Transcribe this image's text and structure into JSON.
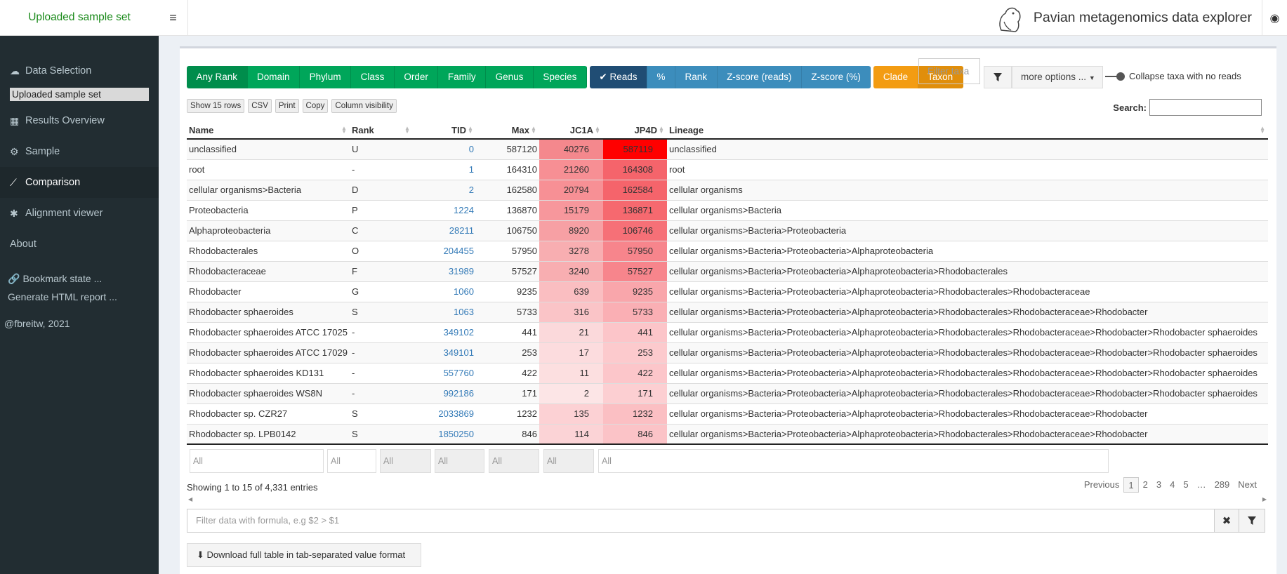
{
  "sidebar": {
    "logo": "Uploaded sample set",
    "items": [
      {
        "label": "Data Selection",
        "icon": "cloud-upload-icon"
      },
      {
        "label": "Results Overview",
        "icon": "table-icon"
      },
      {
        "label": "Sample",
        "icon": "gear-icon"
      },
      {
        "label": "Comparison",
        "icon": "line-chart-icon"
      },
      {
        "label": "Alignment viewer",
        "icon": "asterisk-icon"
      },
      {
        "label": "About",
        "icon": ""
      }
    ],
    "uploaded_label": "Uploaded sample set",
    "bookmark": "Bookmark state ...",
    "report": "Generate HTML report ...",
    "credit": "@fbreitw, 2021"
  },
  "header": {
    "title": "Pavian metagenomics data explorer"
  },
  "toolbar": {
    "rank_buttons": [
      "Any Rank",
      "Domain",
      "Phylum",
      "Class",
      "Order",
      "Family",
      "Genus",
      "Species"
    ],
    "value_buttons": [
      "Reads",
      "%",
      "Rank",
      "Z-score (reads)",
      "Z-score (%)"
    ],
    "clade_buttons": [
      "Clade",
      "Taxon"
    ],
    "filter_placeholder": "Filter taxa",
    "more_options": "more options ...",
    "collapse_label": "Collapse taxa with no reads",
    "small_buttons": [
      "Show 15 rows",
      "CSV",
      "Print",
      "Copy",
      "Column visibility"
    ],
    "search_label": "Search:"
  },
  "table": {
    "columns": [
      "Name",
      "Rank",
      "TID",
      "Max",
      "JC1A",
      "JP4D",
      "Lineage"
    ],
    "rows": [
      [
        "unclassified",
        "U",
        "0",
        "587120",
        "40276",
        "587119",
        "unclassified"
      ],
      [
        "root",
        "-",
        "1",
        "164310",
        "21260",
        "164308",
        "root"
      ],
      [
        "cellular organisms>Bacteria",
        "D",
        "2",
        "162580",
        "20794",
        "162584",
        "cellular organisms"
      ],
      [
        "Proteobacteria",
        "P",
        "1224",
        "136870",
        "15179",
        "136871",
        "cellular organisms>Bacteria"
      ],
      [
        "Alphaproteobacteria",
        "C",
        "28211",
        "106750",
        "8920",
        "106746",
        "cellular organisms>Bacteria>Proteobacteria"
      ],
      [
        "Rhodobacterales",
        "O",
        "204455",
        "57950",
        "3278",
        "57950",
        "cellular organisms>Bacteria>Proteobacteria>Alphaproteobacteria"
      ],
      [
        "Rhodobacteraceae",
        "F",
        "31989",
        "57527",
        "3240",
        "57527",
        "cellular organisms>Bacteria>Proteobacteria>Alphaproteobacteria>Rhodobacterales"
      ],
      [
        "Rhodobacter",
        "G",
        "1060",
        "9235",
        "639",
        "9235",
        "cellular organisms>Bacteria>Proteobacteria>Alphaproteobacteria>Rhodobacterales>Rhodobacteraceae"
      ],
      [
        "Rhodobacter sphaeroides",
        "S",
        "1063",
        "5733",
        "316",
        "5733",
        "cellular organisms>Bacteria>Proteobacteria>Alphaproteobacteria>Rhodobacterales>Rhodobacteraceae>Rhodobacter"
      ],
      [
        "Rhodobacter sphaeroides ATCC 17025",
        "-",
        "349102",
        "441",
        "21",
        "441",
        "cellular organisms>Bacteria>Proteobacteria>Alphaproteobacteria>Rhodobacterales>Rhodobacteraceae>Rhodobacter>Rhodobacter sphaeroides"
      ],
      [
        "Rhodobacter sphaeroides ATCC 17029",
        "-",
        "349101",
        "253",
        "17",
        "253",
        "cellular organisms>Bacteria>Proteobacteria>Alphaproteobacteria>Rhodobacterales>Rhodobacteraceae>Rhodobacter>Rhodobacter sphaeroides"
      ],
      [
        "Rhodobacter sphaeroides KD131",
        "-",
        "557760",
        "422",
        "11",
        "422",
        "cellular organisms>Bacteria>Proteobacteria>Alphaproteobacteria>Rhodobacterales>Rhodobacteraceae>Rhodobacter>Rhodobacter sphaeroides"
      ],
      [
        "Rhodobacter sphaeroides WS8N",
        "-",
        "992186",
        "171",
        "2",
        "171",
        "cellular organisms>Bacteria>Proteobacteria>Alphaproteobacteria>Rhodobacterales>Rhodobacteraceae>Rhodobacter>Rhodobacter sphaeroides"
      ],
      [
        "Rhodobacter sp. CZR27",
        "S",
        "2033869",
        "1232",
        "135",
        "1232",
        "cellular organisms>Bacteria>Proteobacteria>Alphaproteobacteria>Rhodobacterales>Rhodobacteraceae>Rhodobacter"
      ],
      [
        "Rhodobacter sp. LPB0142",
        "S",
        "1850250",
        "846",
        "114",
        "846",
        "cellular organisms>Bacteria>Proteobacteria>Alphaproteobacteria>Rhodobacterales>Rhodobacteraceae>Rhodobacter"
      ]
    ],
    "jc1a_colors": [
      "#f4888d",
      "#f78f94",
      "#f79095",
      "#f7979c",
      "#f7a0a4",
      "#f8aeb1",
      "#f8aeb1",
      "#fabec1",
      "#fac4c7",
      "#fbd9db",
      "#fcdcde",
      "#fcdfe0",
      "#fce5e6",
      "#fcd1d4",
      "#fbd3d6"
    ],
    "jp4d_colors": [
      "#ff0000",
      "#f5646b",
      "#f5646b",
      "#f6696f",
      "#f67077",
      "#f7858c",
      "#f7858c",
      "#f9a6ab",
      "#faafb4",
      "#fcc5c9",
      "#fccacd",
      "#fcc6ca",
      "#fccfd2",
      "#fbbfc3",
      "#fbc3c7"
    ],
    "filter_placeholders": [
      "All",
      "All",
      "All",
      "All",
      "All",
      "All",
      "All"
    ]
  },
  "info": "Showing 1 to 15 of 4,331 entries",
  "pagination": [
    "Previous",
    "1",
    "2",
    "3",
    "4",
    "5",
    "…",
    "289",
    "Next"
  ],
  "formula_placeholder": "Filter data with formula, e.g $2 > $1",
  "download_label": "Download full table in tab-separated value format",
  "colors": {
    "sidebar_bg": "#222d32",
    "green": "#00a65a",
    "blue": "#3c8dbc",
    "orange": "#f39c12",
    "link": "#337ab7"
  }
}
